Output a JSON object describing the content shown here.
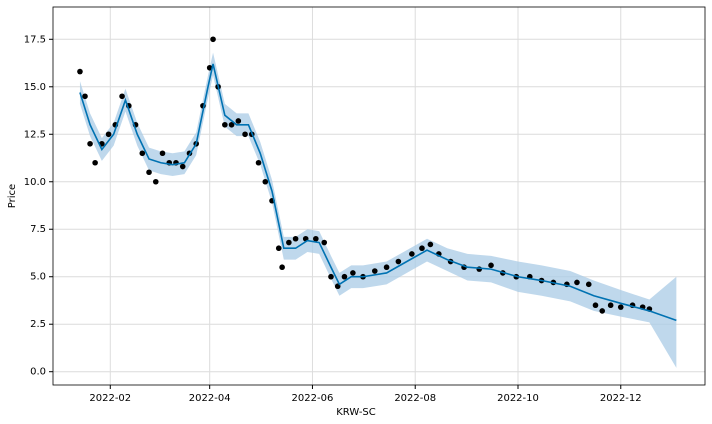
{
  "chart_data": {
    "type": "forecast",
    "x_label": "KRW-SC",
    "y_label": "Price",
    "xlim": [
      "2021-12-29",
      "2023-01-20"
    ],
    "ylim": [
      -0.7,
      19.2
    ],
    "xticks": [
      "2022-02",
      "2022-04",
      "2022-06",
      "2022-08",
      "2022-10",
      "2022-12"
    ],
    "yticks": [
      {
        "value": 0,
        "label": "0.0"
      },
      2.5,
      {
        "value": 5,
        "label": "5.0"
      },
      7.5,
      {
        "value": 10,
        "label": "10.0"
      },
      12.5,
      {
        "value": 15,
        "label": "15.0"
      },
      17.5
    ],
    "grid": true,
    "actual": {
      "color": "#000000",
      "x": [
        "2022-01-14",
        "2022-01-17",
        "2022-01-20",
        "2022-01-23",
        "2022-01-27",
        "2022-01-31",
        "2022-02-04",
        "2022-02-08",
        "2022-02-12",
        "2022-02-16",
        "2022-02-20",
        "2022-02-24",
        "2022-02-28",
        "2022-03-04",
        "2022-03-08",
        "2022-03-12",
        "2022-03-16",
        "2022-03-20",
        "2022-03-24",
        "2022-03-28",
        "2022-04-01",
        "2022-04-03",
        "2022-04-06",
        "2022-04-10",
        "2022-04-14",
        "2022-04-18",
        "2022-04-22",
        "2022-04-26",
        "2022-04-30",
        "2022-05-04",
        "2022-05-08",
        "2022-05-12",
        "2022-05-14",
        "2022-05-18",
        "2022-05-22",
        "2022-05-28",
        "2022-06-03",
        "2022-06-08",
        "2022-06-12",
        "2022-06-16",
        "2022-06-20",
        "2022-06-25",
        "2022-07-01",
        "2022-07-08",
        "2022-07-15",
        "2022-07-22",
        "2022-07-30",
        "2022-08-05",
        "2022-08-10",
        "2022-08-15",
        "2022-08-22",
        "2022-08-30",
        "2022-09-08",
        "2022-09-15",
        "2022-09-22",
        "2022-09-30",
        "2022-10-08",
        "2022-10-15",
        "2022-10-22",
        "2022-10-30",
        "2022-11-05",
        "2022-11-12",
        "2022-11-16",
        "2022-11-20",
        "2022-11-25",
        "2022-12-01",
        "2022-12-08",
        "2022-12-14",
        "2022-12-18"
      ],
      "values": [
        15.8,
        14.5,
        12.0,
        11.0,
        12.0,
        12.5,
        13.0,
        14.5,
        14.0,
        13.0,
        11.5,
        10.5,
        10.0,
        11.5,
        11.0,
        11.0,
        10.8,
        11.5,
        12.0,
        14.0,
        16.0,
        17.5,
        15.0,
        13.0,
        13.0,
        13.2,
        12.5,
        12.5,
        11.0,
        10.0,
        9.0,
        6.5,
        5.5,
        6.8,
        7.0,
        7.0,
        7.0,
        6.8,
        5.0,
        4.5,
        5.0,
        5.2,
        5.0,
        5.3,
        5.5,
        5.8,
        6.2,
        6.5,
        6.7,
        6.2,
        5.8,
        5.5,
        5.4,
        5.6,
        5.2,
        5.0,
        5.0,
        4.8,
        4.7,
        4.6,
        4.7,
        4.6,
        3.5,
        3.2,
        3.5,
        3.4,
        3.5,
        3.4,
        3.3
      ]
    },
    "forecast": {
      "color": "#0072B2",
      "band_color": "#a9cbe5",
      "x": [
        "2022-01-14",
        "2022-01-20",
        "2022-01-27",
        "2022-02-03",
        "2022-02-10",
        "2022-02-17",
        "2022-02-24",
        "2022-03-03",
        "2022-03-10",
        "2022-03-17",
        "2022-03-24",
        "2022-03-31",
        "2022-04-03",
        "2022-04-10",
        "2022-04-17",
        "2022-04-24",
        "2022-05-01",
        "2022-05-08",
        "2022-05-15",
        "2022-05-22",
        "2022-05-29",
        "2022-06-05",
        "2022-06-12",
        "2022-06-17",
        "2022-06-24",
        "2022-07-01",
        "2022-07-15",
        "2022-07-29",
        "2022-08-08",
        "2022-08-20",
        "2022-09-01",
        "2022-09-15",
        "2022-10-01",
        "2022-10-15",
        "2022-11-01",
        "2022-11-15",
        "2022-12-01",
        "2022-12-18",
        "2023-01-03"
      ],
      "yhat": [
        14.7,
        13.0,
        11.7,
        12.5,
        14.3,
        12.5,
        11.2,
        11.0,
        10.9,
        11.0,
        12.0,
        15.0,
        16.2,
        13.5,
        13.0,
        13.0,
        11.5,
        9.5,
        6.5,
        6.5,
        6.9,
        6.8,
        5.5,
        4.6,
        5.0,
        5.0,
        5.2,
        5.9,
        6.4,
        5.9,
        5.5,
        5.4,
        5.0,
        4.8,
        4.5,
        4.0,
        3.6,
        3.2,
        2.7
      ],
      "yhat_lower": [
        14.1,
        12.4,
        11.1,
        11.9,
        13.7,
        11.9,
        10.6,
        10.4,
        10.3,
        10.4,
        11.4,
        14.4,
        15.6,
        12.9,
        12.4,
        12.4,
        10.9,
        8.9,
        5.9,
        5.9,
        6.3,
        6.2,
        4.9,
        4.0,
        4.4,
        4.4,
        4.6,
        5.3,
        5.8,
        5.3,
        4.8,
        4.7,
        4.2,
        4.0,
        3.7,
        3.2,
        2.9,
        2.6,
        0.2
      ],
      "yhat_upper": [
        15.3,
        13.6,
        12.3,
        13.1,
        14.9,
        13.1,
        11.8,
        11.6,
        11.5,
        11.6,
        12.6,
        15.6,
        16.8,
        14.1,
        13.6,
        13.6,
        12.1,
        10.1,
        7.1,
        7.1,
        7.5,
        7.4,
        6.1,
        5.2,
        5.6,
        5.6,
        5.8,
        6.5,
        7.0,
        6.5,
        6.2,
        6.1,
        5.8,
        5.6,
        5.3,
        4.8,
        4.3,
        3.8,
        5.0
      ]
    }
  }
}
